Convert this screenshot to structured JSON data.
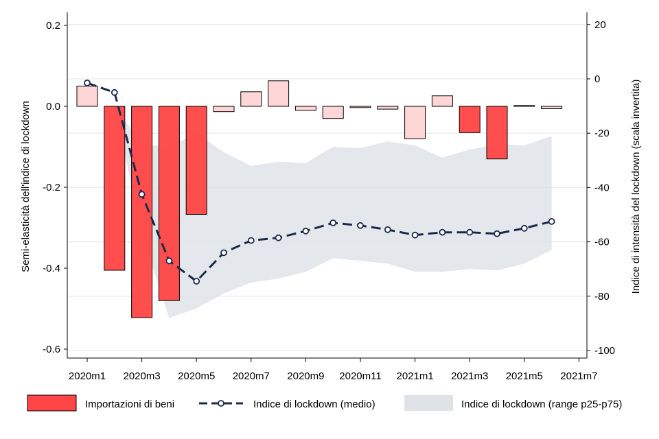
{
  "chart_data": {
    "type": "bar+line+area",
    "x_tick_labels": [
      "2020m1",
      "2020m3",
      "2020m5",
      "2020m7",
      "2020m9",
      "2020m11",
      "2021m1",
      "2021m3",
      "2021m5",
      "2021m7"
    ],
    "months": [
      "2020m1",
      "2020m2",
      "2020m3",
      "2020m4",
      "2020m5",
      "2020m6",
      "2020m7",
      "2020m8",
      "2020m9",
      "2020m10",
      "2020m11",
      "2020m12",
      "2021m1",
      "2021m2",
      "2021m3",
      "2021m4",
      "2021m5",
      "2021m6"
    ],
    "left_axis": {
      "label": "Semi-elasticità dell'indice di lockdown",
      "ticks": [
        0.2,
        0.0,
        -0.2,
        -0.4,
        -0.6
      ],
      "tick_labels": [
        "0.2",
        "0.0",
        "-0.2",
        "-0.4",
        "-0.6"
      ],
      "ylim": [
        -0.62,
        0.22
      ]
    },
    "right_axis": {
      "label": "Indice di intensità del lockdown (scala invertita)",
      "inverted": true,
      "ticks": [
        20,
        0,
        -20,
        -40,
        -60,
        -80,
        -100
      ],
      "tick_labels": [
        "20",
        "0",
        "-20",
        "-40",
        "-60",
        "-80",
        "-100"
      ],
      "ylim": [
        -103,
        21
      ]
    },
    "series": [
      {
        "name": "Importazioni di beni",
        "kind": "bar",
        "axis": "left",
        "values": [
          0.05,
          -0.405,
          -0.522,
          -0.48,
          -0.267,
          -0.013,
          0.036,
          0.063,
          -0.01,
          -0.03,
          -0.003,
          -0.007,
          -0.08,
          0.026,
          -0.065,
          -0.13,
          0.002,
          -0.006
        ],
        "significant": [
          false,
          true,
          true,
          true,
          true,
          false,
          false,
          false,
          false,
          false,
          false,
          false,
          false,
          false,
          true,
          true,
          false,
          false
        ]
      },
      {
        "name": "Indice di lockdown (medio)",
        "kind": "line",
        "axis": "right",
        "values": [
          -1.5,
          -5,
          -42.5,
          -67,
          -74.5,
          -64,
          -59.5,
          -58.5,
          -56,
          -53,
          -54,
          -55.5,
          -57.5,
          -56.5,
          -56.5,
          -57,
          -55,
          -52.5
        ]
      },
      {
        "name": "Indice di lockdown (range p25-p75)",
        "kind": "area",
        "axis": "right",
        "upper": [
          0,
          -10,
          -24,
          -25,
          -20,
          -27,
          -32,
          -30.5,
          -31,
          -25,
          -25.5,
          -23,
          -24.5,
          -29,
          -26,
          -24,
          -24.5,
          -21
        ],
        "lower": [
          0,
          -10,
          -57,
          -88,
          -84.5,
          -79,
          -75,
          -73.5,
          -71,
          -66,
          -67,
          -68,
          -71,
          -71,
          -70,
          -70.5,
          -68,
          -63
        ]
      }
    ],
    "colors": {
      "bar_significant": "#ff4545",
      "bar_insignificant": "#ffd6d6",
      "bar_edge": "#000000",
      "line": "#1c2a4a",
      "area": "#dfe3e8",
      "grid": "#e6e9ec"
    },
    "grid": true,
    "legend_position": "bottom"
  }
}
